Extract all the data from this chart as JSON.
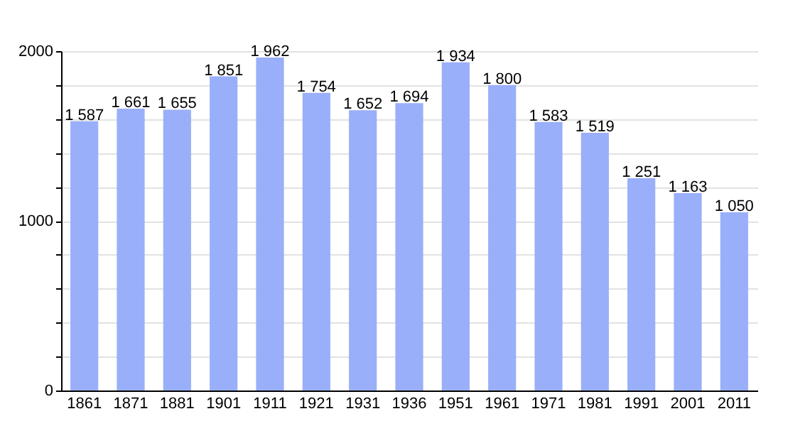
{
  "chart_data": {
    "type": "bar",
    "categories": [
      "1861",
      "1871",
      "1881",
      "1901",
      "1911",
      "1921",
      "1931",
      "1936",
      "1951",
      "1961",
      "1971",
      "1981",
      "1991",
      "2001",
      "2011"
    ],
    "values": [
      1587,
      1661,
      1655,
      1851,
      1962,
      1754,
      1652,
      1694,
      1934,
      1800,
      1583,
      1519,
      1251,
      1163,
      1050
    ],
    "value_labels": [
      "1 587",
      "1 661",
      "1 655",
      "1 851",
      "1 962",
      "1 754",
      "1 652",
      "1 694",
      "1 934",
      "1 800",
      "1 583",
      "1 519",
      "1 251",
      "1 163",
      "1 050"
    ],
    "color": "#9aaff9",
    "ylim": [
      0,
      2000
    ],
    "yticks": [
      0,
      {
        "value": 200,
        "label": null
      },
      {
        "value": 400,
        "label": null
      },
      {
        "value": 600,
        "label": null
      },
      {
        "value": 800,
        "label": null
      },
      1000,
      {
        "value": 1200,
        "label": null
      },
      {
        "value": 1400,
        "label": null
      },
      {
        "value": 1600,
        "label": null
      },
      {
        "value": 1800,
        "label": null
      },
      2000
    ],
    "grid": true
  }
}
